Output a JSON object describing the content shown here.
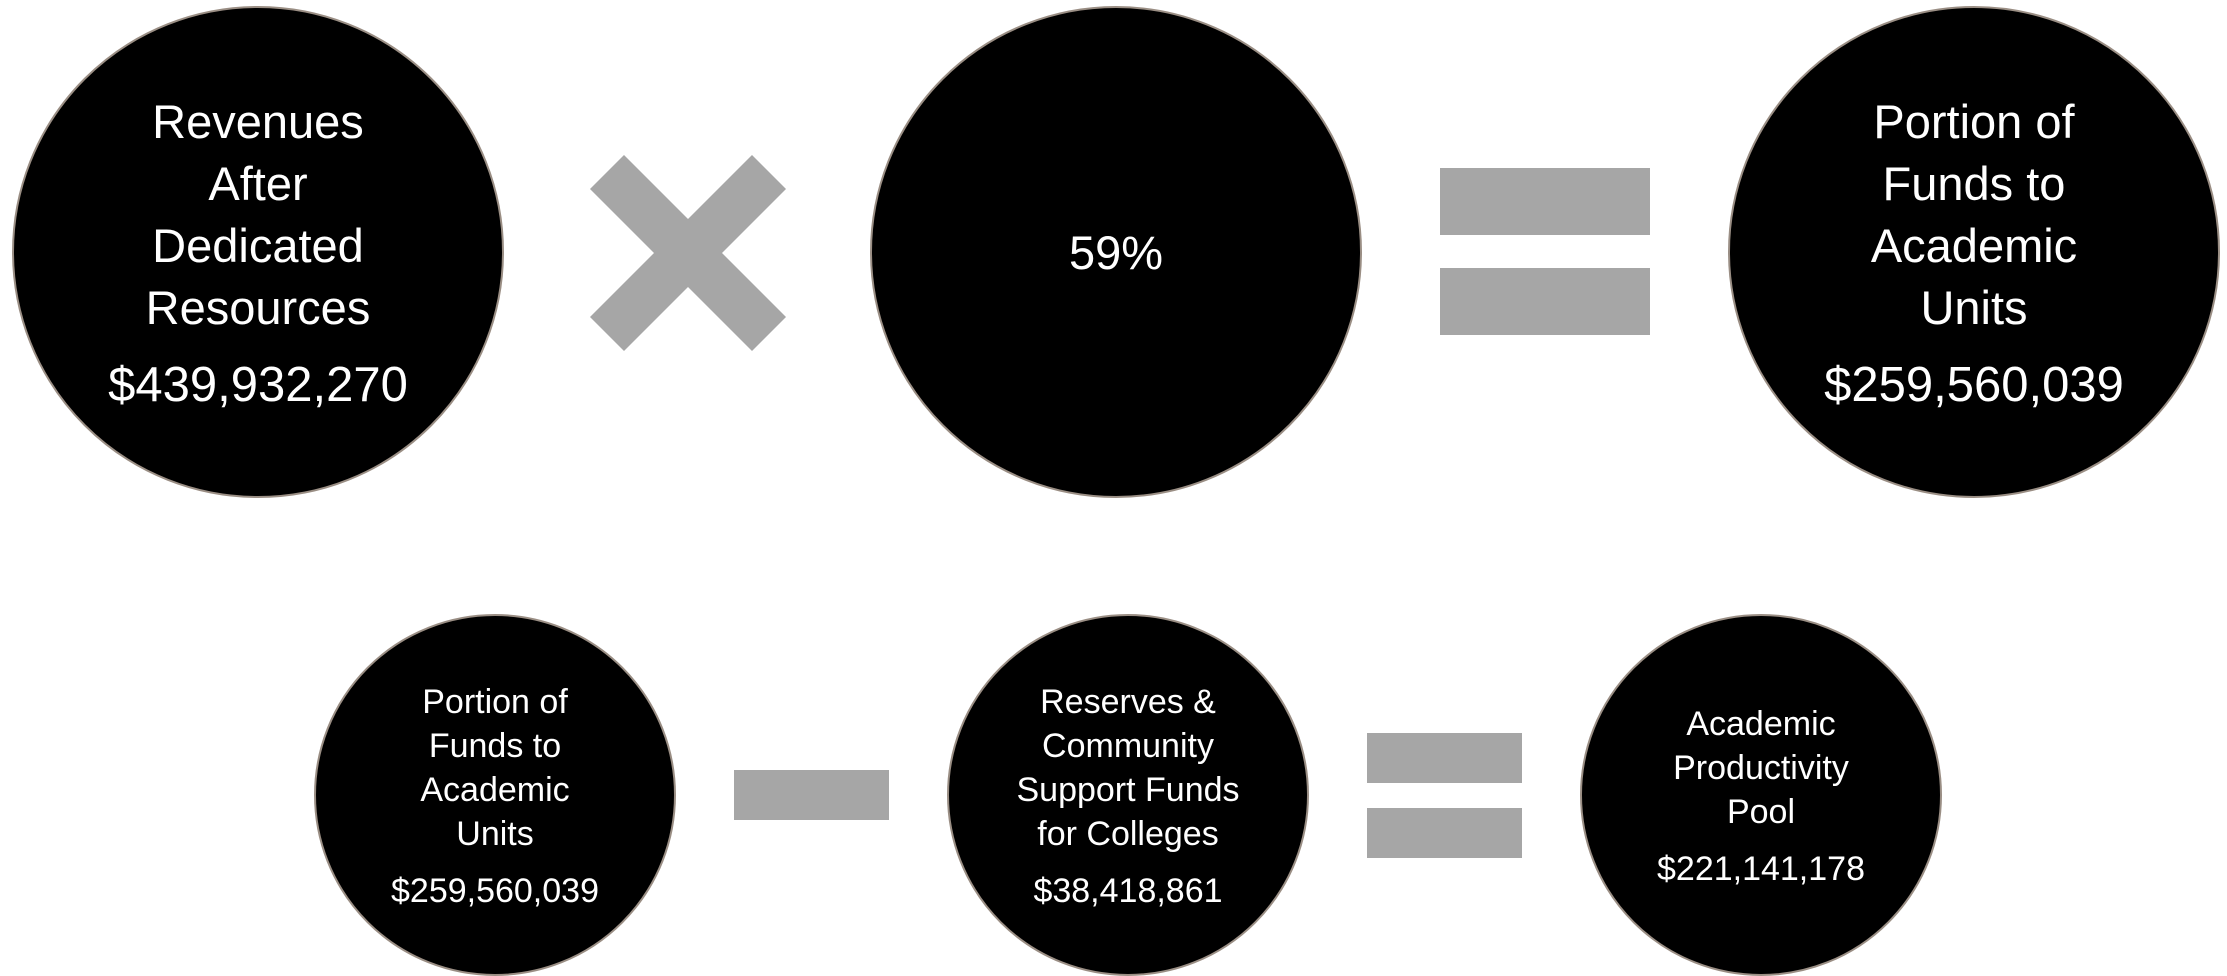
{
  "top_row": {
    "revenues": {
      "label_lines": [
        "Revenues",
        "After",
        "Dedicated",
        "Resources"
      ],
      "amount": "$439,932,270"
    },
    "percent": "59%",
    "portion": {
      "label_lines": [
        "Portion of",
        "Funds to",
        "Academic",
        "Units"
      ],
      "amount": "$259,560,039"
    }
  },
  "bottom_row": {
    "portion": {
      "label_lines": [
        "Portion of",
        "Funds to",
        "Academic",
        "Units"
      ],
      "amount": "$259,560,039"
    },
    "reserves": {
      "label_lines": [
        "Reserves &",
        "Community",
        "Support Funds",
        "for Colleges"
      ],
      "amount": "$38,418,861"
    },
    "pool": {
      "label_lines": [
        "Academic",
        "Productivity",
        "Pool"
      ],
      "amount": "$221,141,178"
    }
  },
  "colors": {
    "circle": "#000000",
    "circle_border": "#9a8e84",
    "operator": "#a6a6a6",
    "text": "#ffffff"
  },
  "icons": {
    "multiply": "multiply-icon",
    "equals": "equals-icon",
    "minus": "minus-icon"
  }
}
